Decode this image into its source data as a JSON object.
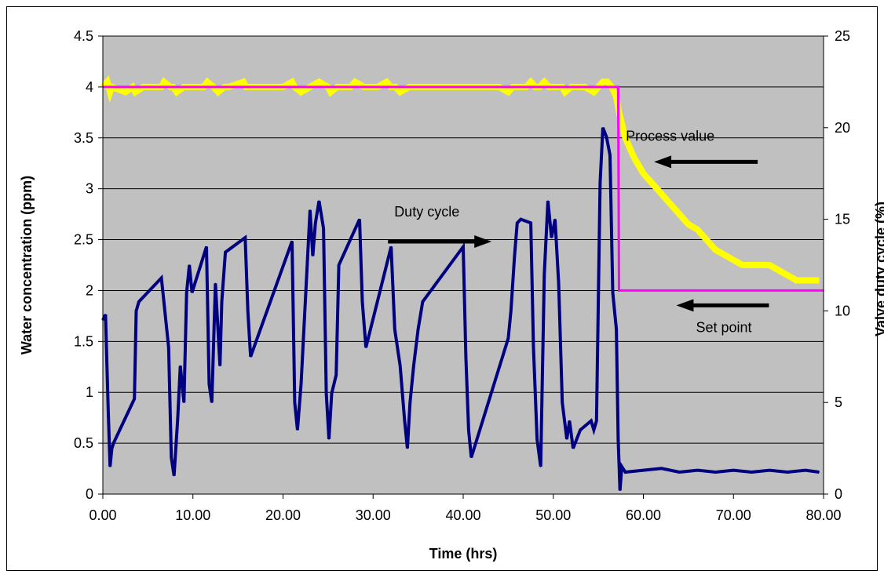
{
  "chart_data": {
    "type": "line",
    "title": "",
    "xlabel": "Time (hrs)",
    "ylabel_left": "Water concentration (ppm)",
    "ylabel_right": "Valve duty cycle (%)",
    "xlim": [
      0,
      80
    ],
    "ylim_left": [
      0,
      4.5
    ],
    "ylim_right": [
      0,
      25
    ],
    "grid": "horizontal",
    "plot_background": "#c0c0c0",
    "x_ticks": [
      "0.00",
      "10.00",
      "20.00",
      "30.00",
      "40.00",
      "50.00",
      "60.00",
      "70.00",
      "80.00"
    ],
    "y_left_ticks": [
      "0",
      "0.5",
      "1",
      "1.5",
      "2",
      "2.5",
      "3",
      "3.5",
      "4",
      "4.5"
    ],
    "y_right_ticks": [
      "0",
      "5",
      "10",
      "15",
      "20",
      "25"
    ],
    "series": [
      {
        "key": "process",
        "axis": "left",
        "color": "#ffff00",
        "x": [
          0,
          0.5,
          0.8,
          1.0,
          2.5,
          3.3,
          3.6,
          4.5,
          6.5,
          6.8,
          7.5,
          7.8,
          8.2,
          9.0,
          9.5,
          10,
          10.5,
          11.2,
          11.6,
          12.3,
          12.8,
          13.5,
          14.0,
          15.6,
          15.9,
          16.4,
          18,
          19,
          20,
          21.0,
          21.3,
          22,
          23,
          24,
          25.0,
          25.3,
          26,
          27.5,
          28,
          29,
          30,
          30.5,
          31.5,
          32,
          32.5,
          33,
          34,
          35,
          36,
          37,
          38,
          39,
          40,
          40.5,
          41,
          42,
          43,
          44,
          45,
          45.5,
          46,
          47,
          47.5,
          48,
          48.5,
          49,
          49.5,
          50,
          51,
          51.3,
          52,
          53,
          53.5,
          54.5,
          55,
          55.5,
          56,
          56.5,
          57,
          57.3,
          58,
          59,
          60,
          61,
          62,
          63,
          64,
          65,
          66,
          67,
          68,
          69,
          70,
          71,
          72,
          73,
          74,
          75,
          76,
          77,
          78,
          79,
          79.5
        ],
        "values": [
          4.0,
          4.05,
          3.95,
          4.0,
          3.95,
          4.0,
          3.95,
          4.0,
          4.0,
          4.05,
          4.0,
          4.0,
          3.95,
          4.0,
          4.0,
          4.0,
          4.0,
          4.0,
          4.05,
          4.0,
          3.95,
          4.0,
          4.0,
          4.05,
          4.0,
          4.0,
          4.0,
          4.0,
          4.0,
          4.05,
          4.0,
          3.95,
          4.0,
          4.05,
          4.0,
          3.95,
          4.0,
          4.0,
          4.05,
          4.0,
          4.0,
          4.0,
          4.05,
          4.0,
          4.0,
          3.95,
          4.0,
          4.0,
          4.0,
          4.0,
          4.0,
          4.0,
          4.0,
          4.0,
          4.0,
          4.0,
          4.0,
          4.0,
          3.95,
          4.0,
          4.0,
          4.0,
          4.05,
          4.0,
          4.0,
          4.05,
          4.0,
          4.0,
          4.0,
          3.95,
          4.0,
          4.0,
          4.0,
          3.95,
          4.0,
          4.05,
          4.05,
          4.0,
          3.9,
          3.75,
          3.5,
          3.3,
          3.15,
          3.05,
          2.95,
          2.85,
          2.75,
          2.65,
          2.6,
          2.5,
          2.4,
          2.35,
          2.3,
          2.25,
          2.25,
          2.25,
          2.25,
          2.2,
          2.15,
          2.1,
          2.1,
          2.1,
          2.1
        ]
      },
      {
        "key": "setpoint",
        "axis": "left",
        "color": "#ff00ff",
        "x": [
          0,
          57.2,
          57.3,
          80
        ],
        "values": [
          4.0,
          4.0,
          2.0,
          2.0
        ]
      },
      {
        "key": "duty",
        "axis": "right",
        "color": "#000080",
        "x": [
          0,
          0.3,
          0.6,
          0.8,
          1.0,
          1.2,
          3.5,
          3.7,
          4.0,
          6.5,
          7.3,
          7.6,
          7.9,
          8.3,
          8.6,
          9.0,
          9.3,
          9.6,
          9.9,
          11.5,
          11.8,
          12.1,
          12.5,
          13.0,
          13.2,
          13.6,
          15.8,
          16.1,
          16.4,
          21.0,
          21.3,
          21.6,
          22.0,
          23.0,
          23.3,
          23.6,
          24.0,
          24.5,
          24.8,
          25.1,
          25.4,
          25.9,
          26.2,
          28.5,
          28.8,
          29.2,
          32.0,
          32.4,
          33.0,
          33.5,
          33.8,
          34.1,
          34.5,
          35.0,
          35.5,
          40.0,
          40.3,
          40.6,
          40.9,
          45.0,
          45.3,
          45.7,
          46.0,
          46.4,
          47.5,
          47.8,
          48.2,
          48.6,
          49.0,
          49.4,
          49.8,
          50.2,
          50.6,
          51.0,
          51.5,
          51.8,
          52.2,
          53.0,
          54.2,
          54.5,
          54.8,
          55.2,
          55.5,
          55.9,
          56.3,
          56.6,
          57.0,
          57.2,
          57.4,
          57.6,
          58,
          60,
          62,
          64,
          66,
          68,
          70,
          72,
          74,
          76,
          78,
          79.5
        ],
        "values": [
          9.5,
          9.8,
          4.5,
          1.5,
          2.5,
          2.8,
          5.2,
          10.0,
          10.5,
          11.8,
          8.0,
          2.0,
          1.0,
          4.0,
          7.0,
          5.0,
          11.0,
          12.5,
          11.0,
          13.5,
          6.0,
          5.0,
          11.5,
          7.0,
          10.5,
          13.2,
          14.0,
          10.0,
          7.5,
          13.8,
          5.0,
          3.5,
          6.0,
          15.5,
          13.0,
          14.8,
          16.0,
          14.5,
          5.5,
          3.0,
          5.5,
          6.5,
          12.5,
          15.0,
          10.5,
          8.0,
          13.5,
          9.0,
          7.0,
          4.0,
          2.5,
          5.0,
          7.0,
          9.0,
          10.5,
          13.5,
          7.5,
          3.5,
          2.0,
          8.5,
          10.0,
          13.0,
          14.8,
          15.0,
          14.8,
          8.0,
          3.0,
          1.5,
          12.0,
          16.0,
          14.0,
          15.0,
          11.5,
          5.0,
          3.0,
          4.0,
          2.5,
          3.5,
          4.0,
          3.5,
          4.0,
          17.0,
          20.0,
          19.5,
          18.5,
          11.0,
          9.0,
          3.0,
          0.2,
          1.5,
          1.2,
          1.3,
          1.4,
          1.2,
          1.3,
          1.2,
          1.3,
          1.2,
          1.3,
          1.2,
          1.3,
          1.2
        ]
      }
    ],
    "annotations": [
      {
        "key": "process",
        "text": "Process value",
        "x": 57.0,
        "y_left": 3.28,
        "arrow": "left"
      },
      {
        "key": "setpoint",
        "text": "Set point",
        "x": 62.0,
        "y_left": 1.7,
        "arrow": "left"
      },
      {
        "key": "duty",
        "text": "Duty cycle",
        "x": 32.0,
        "y_left": 2.62,
        "arrow": "right"
      }
    ]
  }
}
